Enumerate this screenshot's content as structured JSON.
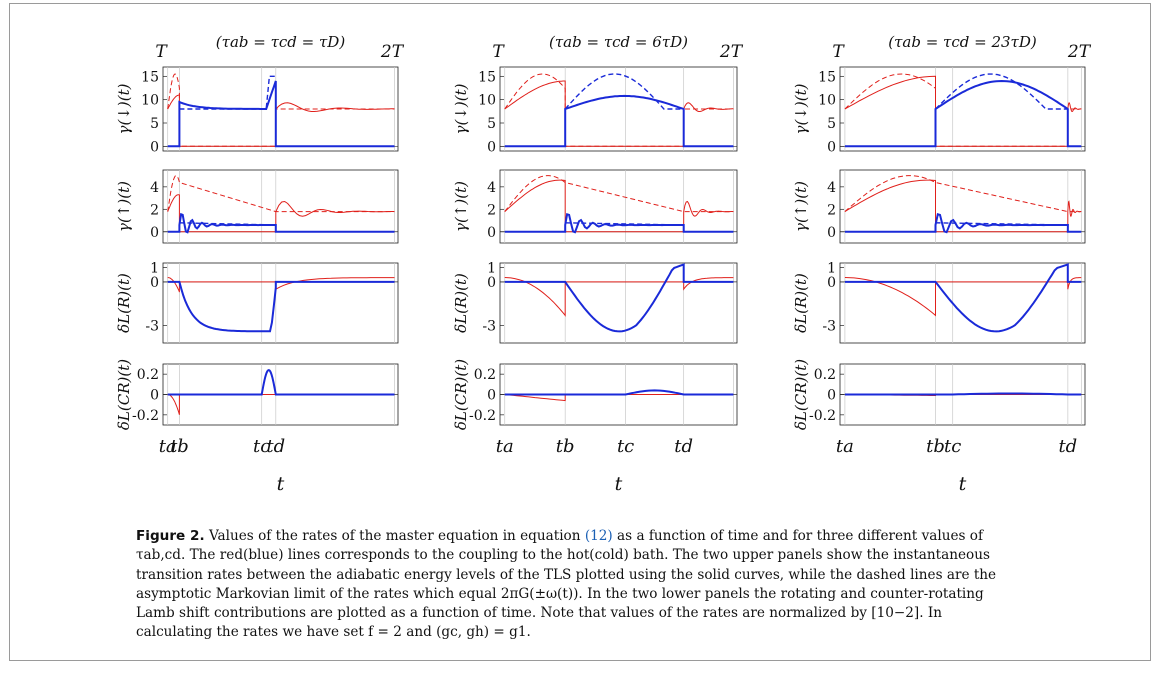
{
  "figure": {
    "columns": [
      {
        "title": "(τab = τcd = τD)",
        "t_start": "T",
        "t_end": "2T",
        "xlabel": "t",
        "ticks": [
          "ta",
          "tb",
          "tc",
          "td"
        ]
      },
      {
        "title": "(τab = τcd = 6τD)",
        "t_start": "T",
        "t_end": "2T",
        "xlabel": "t",
        "ticks": [
          "ta",
          "tb",
          "tc",
          "td"
        ]
      },
      {
        "title": "(τab = τcd = 23τD)",
        "t_start": "T",
        "t_end": "2T",
        "xlabel": "t",
        "ticks": [
          "ta",
          "tb",
          "tc",
          "td"
        ]
      }
    ],
    "rows": [
      {
        "ylabel": "γ(↓)(t)",
        "yticks": [
          "0",
          "5",
          "10",
          "15"
        ]
      },
      {
        "ylabel": "γ(↑)(t)",
        "yticks": [
          "0",
          "2",
          "4"
        ]
      },
      {
        "ylabel": "δL(R)(t)",
        "yticks": [
          "-3",
          "0",
          "1"
        ]
      },
      {
        "ylabel": "δL(CR)(t)",
        "yticks": [
          "-0.2",
          "0",
          "0.2"
        ]
      }
    ],
    "colors": {
      "hot": "#e0201b",
      "cold": "#1a2ad8",
      "grid": "#c8c8c8",
      "axis": "#222222"
    }
  },
  "caption": {
    "label": "Figure 2.",
    "part1": "Values of the rates of the master equation in equation ",
    "eq_ref": "(12)",
    "part2": " as a function of time and for three different values of τab,cd. The red(blue) lines corresponds to the coupling to the hot(cold) bath. The two upper panels show the instantaneous transition rates between the adiabatic energy levels of the TLS plotted using the solid curves, while the dashed lines are the asymptotic Markovian limit of the rates which equal 2πG(±ω(t)). In the two lower panels the rotating and counter-rotating Lamb shift contributions are plotted as a function of time. Note that values of the rates are normalized by [10−2]. In calculating the rates we have set f = 2 and (gc, gh) = g1."
  }
}
